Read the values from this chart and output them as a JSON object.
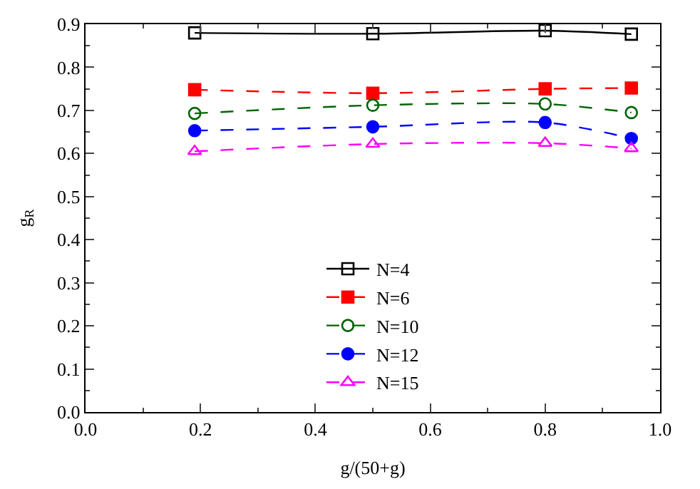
{
  "chart_data": {
    "type": "line",
    "xlabel": "g/(50+g)",
    "ylabel": "g$_{R}$",
    "xlim": [
      0.0,
      1.0
    ],
    "xticks": [
      {
        "value": 0,
        "label": "0.0"
      },
      0.2,
      0.4,
      0.6,
      0.8,
      {
        "value": 1,
        "label": "1.0"
      }
    ],
    "ylim": [
      0.0,
      0.9
    ],
    "yticks": [
      {
        "value": 0,
        "label": "0.0"
      },
      0.1,
      0.2,
      0.3,
      0.4,
      0.5,
      0.6,
      0.7,
      0.8,
      0.9
    ],
    "legend": "bottom",
    "x": [
      0.19,
      0.5,
      0.8,
      0.95
    ],
    "series": [
      {
        "name": "N=4",
        "color": "#000000",
        "values": [
          0.88,
          0.878,
          0.885,
          0.877
        ],
        "marker": "square",
        "line_style": "solid"
      },
      {
        "name": "N=6",
        "color": "#ff0000",
        "values": [
          0.748,
          0.74,
          0.75,
          0.752
        ],
        "marker": "square",
        "line_style": "dashed"
      },
      {
        "name": "N=10",
        "color": "#006400",
        "values": [
          0.693,
          0.712,
          0.715,
          0.695
        ],
        "marker": "circle",
        "line_style": "dashed"
      },
      {
        "name": "N=12",
        "color": "#0000ff",
        "values": [
          0.653,
          0.662,
          0.672,
          0.635
        ],
        "marker": "circle",
        "line_style": "dashed"
      },
      {
        "name": "N=15",
        "color": "#ff00ff",
        "values": [
          0.605,
          0.622,
          0.624,
          0.612
        ],
        "marker": "triangle",
        "line_style": "dashed"
      }
    ]
  }
}
